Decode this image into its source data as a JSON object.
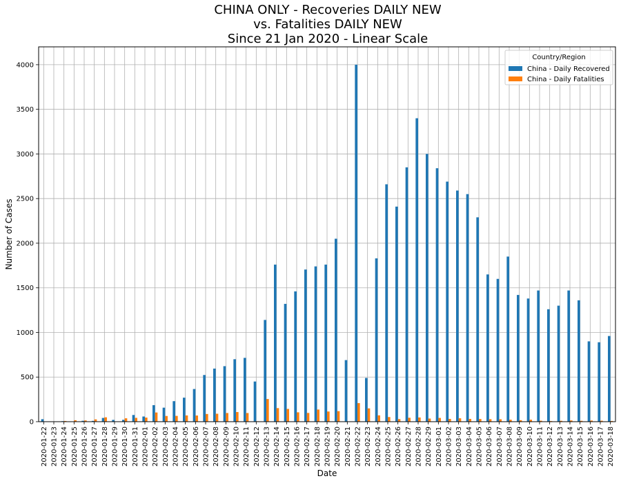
{
  "chart_data": {
    "type": "bar",
    "title_lines": [
      "CHINA ONLY - Recoveries DAILY NEW",
      "vs. Fatalities DAILY NEW",
      "Since 21 Jan 2020 - Linear Scale"
    ],
    "xlabel": "Date",
    "ylabel": "Number of Cases",
    "ylim": [
      0,
      4200
    ],
    "yticks": [
      0,
      500,
      1000,
      1500,
      2000,
      2500,
      3000,
      3500,
      4000
    ],
    "grid": true,
    "legend": {
      "title": "Country/Region",
      "placement": "top-right"
    },
    "categories": [
      "2020-01-22",
      "2020-01-23",
      "2020-01-24",
      "2020-01-25",
      "2020-01-26",
      "2020-01-27",
      "2020-01-28",
      "2020-01-29",
      "2020-01-30",
      "2020-01-31",
      "2020-02-01",
      "2020-02-02",
      "2020-02-03",
      "2020-02-04",
      "2020-02-05",
      "2020-02-06",
      "2020-02-07",
      "2020-02-08",
      "2020-02-09",
      "2020-02-10",
      "2020-02-11",
      "2020-02-12",
      "2020-02-13",
      "2020-02-14",
      "2020-02-15",
      "2020-02-16",
      "2020-02-17",
      "2020-02-18",
      "2020-02-19",
      "2020-02-20",
      "2020-02-21",
      "2020-02-22",
      "2020-02-23",
      "2020-02-24",
      "2020-02-25",
      "2020-02-26",
      "2020-02-27",
      "2020-02-28",
      "2020-02-29",
      "2020-03-01",
      "2020-03-02",
      "2020-03-03",
      "2020-03-04",
      "2020-03-05",
      "2020-03-06",
      "2020-03-07",
      "2020-03-08",
      "2020-03-09",
      "2020-03-10",
      "2020-03-11",
      "2020-03-12",
      "2020-03-13",
      "2020-03-14",
      "2020-03-15",
      "2020-03-16",
      "2020-03-17",
      "2020-03-18"
    ],
    "series": [
      {
        "name": "China - Daily Recovered",
        "color": "#1f77b4",
        "values": [
          28,
          2,
          6,
          3,
          10,
          9,
          42,
          20,
          21,
          75,
          58,
          185,
          157,
          230,
          269,
          366,
          523,
          595,
          622,
          700,
          715,
          450,
          1140,
          1760,
          1320,
          1460,
          1705,
          1740,
          1760,
          2050,
          690,
          4000,
          490,
          1830,
          2660,
          2410,
          2850,
          3400,
          3000,
          2840,
          2690,
          2590,
          2550,
          2290,
          1650,
          1600,
          1850,
          1420,
          1380,
          1470,
          1260,
          1300,
          1470,
          1360,
          900,
          890,
          960
        ]
      },
      {
        "name": "China - Daily Fatalities",
        "color": "#ff7f0e",
        "values": [
          0,
          1,
          8,
          16,
          14,
          26,
          49,
          2,
          38,
          43,
          46,
          103,
          64,
          65,
          70,
          69,
          86,
          89,
          97,
          108,
          97,
          5,
          254,
          152,
          143,
          105,
          98,
          136,
          114,
          118,
          4,
          208,
          149,
          71,
          52,
          29,
          44,
          47,
          35,
          42,
          31,
          38,
          31,
          30,
          28,
          27,
          22,
          17,
          22,
          11,
          7,
          10,
          14,
          10,
          13,
          11,
          8
        ]
      }
    ]
  }
}
